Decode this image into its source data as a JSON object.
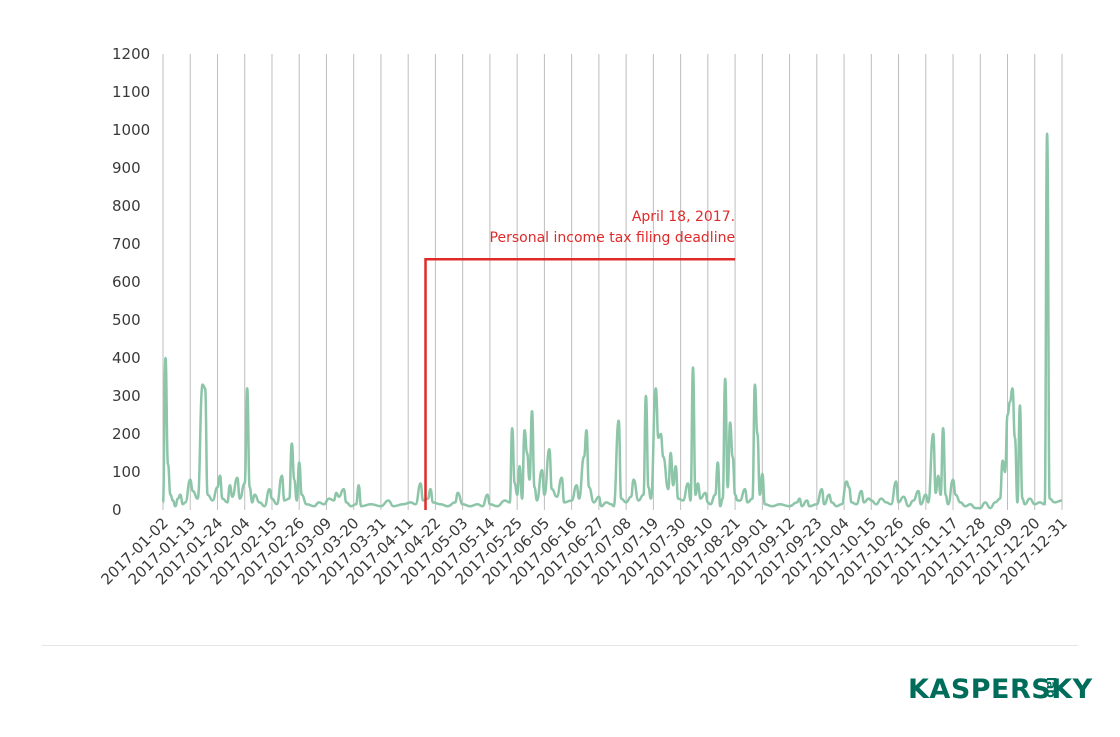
{
  "chart_data": {
    "type": "line",
    "title": "",
    "xlabel": "",
    "ylabel": "",
    "ylim": [
      0,
      1200
    ],
    "yticks": [
      0,
      100,
      200,
      300,
      400,
      500,
      600,
      700,
      800,
      900,
      1000,
      1100,
      1200
    ],
    "grid": "vertical",
    "x_tick_labels": [
      "2017-01-02",
      "2017-01-13",
      "2017-01-24",
      "2017-02-04",
      "2017-02-15",
      "2017-02-26",
      "2017-03-09",
      "2017-03-20",
      "2017-03-31",
      "2017-04-11",
      "2017-04-22",
      "2017-05-03",
      "2017-05-14",
      "2017-05-25",
      "2017-06-05",
      "2017-06-16",
      "2017-06-27",
      "2017-07-08",
      "2017-07-19",
      "2017-07-30",
      "2017-08-10",
      "2017-08-21",
      "2017-09-01",
      "2017-09-12",
      "2017-09-23",
      "2017-10-04",
      "2017-10-15",
      "2017-10-26",
      "2017-11-06",
      "2017-11-17",
      "2017-11-28",
      "2017-12-09",
      "2017-12-20",
      "2017-12-31"
    ],
    "series": [
      {
        "color": "#8cc5a8",
        "points": [
          [
            "2017-01-02",
            20
          ],
          [
            "2017-01-03",
            400
          ],
          [
            "2017-01-04",
            120
          ],
          [
            "2017-01-05",
            40
          ],
          [
            "2017-01-06",
            25
          ],
          [
            "2017-01-07",
            10
          ],
          [
            "2017-01-08",
            30
          ],
          [
            "2017-01-09",
            40
          ],
          [
            "2017-01-10",
            15
          ],
          [
            "2017-01-11",
            20
          ],
          [
            "2017-01-13",
            80
          ],
          [
            "2017-01-14",
            50
          ],
          [
            "2017-01-16",
            30
          ],
          [
            "2017-01-18",
            330
          ],
          [
            "2017-01-19",
            320
          ],
          [
            "2017-01-20",
            40
          ],
          [
            "2017-01-22",
            25
          ],
          [
            "2017-01-24",
            60
          ],
          [
            "2017-01-25",
            90
          ],
          [
            "2017-01-26",
            30
          ],
          [
            "2017-01-28",
            20
          ],
          [
            "2017-01-29",
            65
          ],
          [
            "2017-01-30",
            35
          ],
          [
            "2017-02-01",
            85
          ],
          [
            "2017-02-02",
            30
          ],
          [
            "2017-02-04",
            70
          ],
          [
            "2017-02-05",
            320
          ],
          [
            "2017-02-06",
            60
          ],
          [
            "2017-02-07",
            20
          ],
          [
            "2017-02-08",
            40
          ],
          [
            "2017-02-10",
            20
          ],
          [
            "2017-02-12",
            10
          ],
          [
            "2017-02-14",
            55
          ],
          [
            "2017-02-15",
            30
          ],
          [
            "2017-02-17",
            15
          ],
          [
            "2017-02-19",
            90
          ],
          [
            "2017-02-20",
            25
          ],
          [
            "2017-02-22",
            30
          ],
          [
            "2017-02-23",
            175
          ],
          [
            "2017-02-24",
            80
          ],
          [
            "2017-02-25",
            25
          ],
          [
            "2017-02-26",
            125
          ],
          [
            "2017-02-27",
            40
          ],
          [
            "2017-03-01",
            15
          ],
          [
            "2017-03-04",
            10
          ],
          [
            "2017-03-06",
            20
          ],
          [
            "2017-03-08",
            15
          ],
          [
            "2017-03-10",
            30
          ],
          [
            "2017-03-12",
            25
          ],
          [
            "2017-03-13",
            45
          ],
          [
            "2017-03-14",
            35
          ],
          [
            "2017-03-16",
            55
          ],
          [
            "2017-03-17",
            20
          ],
          [
            "2017-03-19",
            10
          ],
          [
            "2017-03-21",
            15
          ],
          [
            "2017-03-22",
            65
          ],
          [
            "2017-03-23",
            10
          ],
          [
            "2017-03-27",
            15
          ],
          [
            "2017-03-31",
            10
          ],
          [
            "2017-04-03",
            25
          ],
          [
            "2017-04-05",
            10
          ],
          [
            "2017-04-09",
            15
          ],
          [
            "2017-04-12",
            20
          ],
          [
            "2017-04-14",
            15
          ],
          [
            "2017-04-16",
            70
          ],
          [
            "2017-04-17",
            25
          ],
          [
            "2017-04-19",
            30
          ],
          [
            "2017-04-20",
            55
          ],
          [
            "2017-04-21",
            20
          ],
          [
            "2017-04-24",
            15
          ],
          [
            "2017-04-27",
            10
          ],
          [
            "2017-04-30",
            20
          ],
          [
            "2017-05-01",
            45
          ],
          [
            "2017-05-03",
            15
          ],
          [
            "2017-05-06",
            10
          ],
          [
            "2017-05-09",
            15
          ],
          [
            "2017-05-11",
            10
          ],
          [
            "2017-05-13",
            40
          ],
          [
            "2017-05-14",
            15
          ],
          [
            "2017-05-17",
            10
          ],
          [
            "2017-05-20",
            25
          ],
          [
            "2017-05-22",
            20
          ],
          [
            "2017-05-23",
            215
          ],
          [
            "2017-05-24",
            70
          ],
          [
            "2017-05-25",
            40
          ],
          [
            "2017-05-26",
            115
          ],
          [
            "2017-05-27",
            30
          ],
          [
            "2017-05-28",
            210
          ],
          [
            "2017-05-29",
            150
          ],
          [
            "2017-05-30",
            80
          ],
          [
            "2017-05-31",
            260
          ],
          [
            "2017-06-01",
            60
          ],
          [
            "2017-06-02",
            25
          ],
          [
            "2017-06-04",
            105
          ],
          [
            "2017-06-05",
            40
          ],
          [
            "2017-06-07",
            160
          ],
          [
            "2017-06-08",
            55
          ],
          [
            "2017-06-10",
            35
          ],
          [
            "2017-06-12",
            85
          ],
          [
            "2017-06-13",
            20
          ],
          [
            "2017-06-16",
            25
          ],
          [
            "2017-06-18",
            65
          ],
          [
            "2017-06-19",
            30
          ],
          [
            "2017-06-21",
            140
          ],
          [
            "2017-06-22",
            210
          ],
          [
            "2017-06-23",
            60
          ],
          [
            "2017-06-25",
            20
          ],
          [
            "2017-06-27",
            35
          ],
          [
            "2017-06-28",
            10
          ],
          [
            "2017-06-30",
            20
          ],
          [
            "2017-07-02",
            15
          ],
          [
            "2017-07-03",
            10
          ],
          [
            "2017-07-05",
            235
          ],
          [
            "2017-07-06",
            30
          ],
          [
            "2017-07-08",
            20
          ],
          [
            "2017-07-10",
            35
          ],
          [
            "2017-07-11",
            80
          ],
          [
            "2017-07-13",
            25
          ],
          [
            "2017-07-15",
            40
          ],
          [
            "2017-07-16",
            300
          ],
          [
            "2017-07-17",
            60
          ],
          [
            "2017-07-18",
            30
          ],
          [
            "2017-07-20",
            320
          ],
          [
            "2017-07-21",
            190
          ],
          [
            "2017-07-22",
            200
          ],
          [
            "2017-07-23",
            140
          ],
          [
            "2017-07-25",
            55
          ],
          [
            "2017-07-26",
            150
          ],
          [
            "2017-07-27",
            65
          ],
          [
            "2017-07-28",
            115
          ],
          [
            "2017-07-29",
            30
          ],
          [
            "2017-07-31",
            25
          ],
          [
            "2017-08-02",
            70
          ],
          [
            "2017-08-03",
            25
          ],
          [
            "2017-08-04",
            375
          ],
          [
            "2017-08-05",
            40
          ],
          [
            "2017-08-06",
            70
          ],
          [
            "2017-08-07",
            30
          ],
          [
            "2017-08-09",
            45
          ],
          [
            "2017-08-10",
            20
          ],
          [
            "2017-08-11",
            15
          ],
          [
            "2017-08-13",
            40
          ],
          [
            "2017-08-14",
            125
          ],
          [
            "2017-08-15",
            10
          ],
          [
            "2017-08-16",
            30
          ],
          [
            "2017-08-17",
            345
          ],
          [
            "2017-08-18",
            60
          ],
          [
            "2017-08-19",
            230
          ],
          [
            "2017-08-20",
            140
          ],
          [
            "2017-08-21",
            40
          ],
          [
            "2017-08-22",
            25
          ],
          [
            "2017-08-23",
            25
          ],
          [
            "2017-08-25",
            55
          ],
          [
            "2017-08-26",
            20
          ],
          [
            "2017-08-28",
            30
          ],
          [
            "2017-08-29",
            330
          ],
          [
            "2017-08-30",
            200
          ],
          [
            "2017-08-31",
            40
          ],
          [
            "2017-09-01",
            95
          ],
          [
            "2017-09-02",
            15
          ],
          [
            "2017-09-05",
            10
          ],
          [
            "2017-09-08",
            15
          ],
          [
            "2017-09-12",
            10
          ],
          [
            "2017-09-15",
            20
          ],
          [
            "2017-09-16",
            30
          ],
          [
            "2017-09-17",
            10
          ],
          [
            "2017-09-19",
            25
          ],
          [
            "2017-09-20",
            10
          ],
          [
            "2017-09-23",
            15
          ],
          [
            "2017-09-25",
            55
          ],
          [
            "2017-09-26",
            15
          ],
          [
            "2017-09-28",
            40
          ],
          [
            "2017-09-29",
            20
          ],
          [
            "2017-10-01",
            10
          ],
          [
            "2017-10-03",
            15
          ],
          [
            "2017-10-05",
            75
          ],
          [
            "2017-10-06",
            60
          ],
          [
            "2017-10-07",
            20
          ],
          [
            "2017-10-09",
            15
          ],
          [
            "2017-10-11",
            50
          ],
          [
            "2017-10-12",
            20
          ],
          [
            "2017-10-14",
            30
          ],
          [
            "2017-10-15",
            25
          ],
          [
            "2017-10-17",
            15
          ],
          [
            "2017-10-19",
            30
          ],
          [
            "2017-10-21",
            20
          ],
          [
            "2017-10-23",
            15
          ],
          [
            "2017-10-25",
            75
          ],
          [
            "2017-10-26",
            20
          ],
          [
            "2017-10-28",
            35
          ],
          [
            "2017-10-30",
            10
          ],
          [
            "2017-11-01",
            25
          ],
          [
            "2017-11-03",
            50
          ],
          [
            "2017-11-04",
            15
          ],
          [
            "2017-11-06",
            40
          ],
          [
            "2017-11-07",
            20
          ],
          [
            "2017-11-09",
            200
          ],
          [
            "2017-11-10",
            45
          ],
          [
            "2017-11-11",
            90
          ],
          [
            "2017-11-12",
            40
          ],
          [
            "2017-11-13",
            215
          ],
          [
            "2017-11-14",
            40
          ],
          [
            "2017-11-15",
            15
          ],
          [
            "2017-11-17",
            80
          ],
          [
            "2017-11-18",
            40
          ],
          [
            "2017-11-20",
            20
          ],
          [
            "2017-11-22",
            10
          ],
          [
            "2017-11-24",
            15
          ],
          [
            "2017-11-26",
            5
          ],
          [
            "2017-11-28",
            5
          ],
          [
            "2017-11-30",
            20
          ],
          [
            "2017-12-02",
            5
          ],
          [
            "2017-12-04",
            20
          ],
          [
            "2017-12-06",
            30
          ],
          [
            "2017-12-07",
            130
          ],
          [
            "2017-12-08",
            100
          ],
          [
            "2017-12-09",
            250
          ],
          [
            "2017-12-10",
            285
          ],
          [
            "2017-12-11",
            320
          ],
          [
            "2017-12-12",
            190
          ],
          [
            "2017-12-13",
            20
          ],
          [
            "2017-12-14",
            275
          ],
          [
            "2017-12-15",
            30
          ],
          [
            "2017-12-16",
            15
          ],
          [
            "2017-12-18",
            30
          ],
          [
            "2017-12-20",
            15
          ],
          [
            "2017-12-22",
            20
          ],
          [
            "2017-12-24",
            15
          ],
          [
            "2017-12-25",
            990
          ],
          [
            "2017-12-26",
            30
          ],
          [
            "2017-12-28",
            20
          ],
          [
            "2017-12-31",
            25
          ]
        ]
      }
    ],
    "annotation": {
      "date": "2017-04-18",
      "y": 660,
      "end_date": "2017-08-21",
      "color": "#e02a2a",
      "line1": "April 18, 2017.",
      "line2": "Personal income tax filing deadline"
    }
  },
  "logo": {
    "main": "KASPERSKY",
    "sub": "lab",
    "color": "#006d5b"
  }
}
